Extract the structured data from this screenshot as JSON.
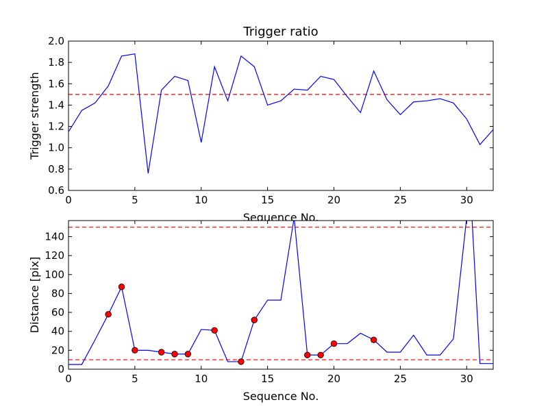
{
  "chart_data": [
    {
      "type": "line",
      "title": "Trigger ratio",
      "xlabel": "Sequence No.",
      "ylabel": "Trigger strength",
      "xlim": [
        0,
        32
      ],
      "ylim": [
        0.6,
        2.0
      ],
      "xticks": [
        0,
        5,
        10,
        15,
        20,
        25,
        30
      ],
      "xtick_labels": [
        "0",
        "5",
        "10",
        "15",
        "20",
        "25",
        "30"
      ],
      "yticks": [
        0.6,
        0.8,
        1.0,
        1.2,
        1.4,
        1.6,
        1.8,
        2.0
      ],
      "ytick_labels": [
        "0.6",
        "0.8",
        "1.0",
        "1.2",
        "1.4",
        "1.6",
        "1.8",
        "2.0"
      ],
      "grid": false,
      "series": [
        {
          "color": "#0000ff",
          "x": [
            0,
            1,
            2,
            3,
            4,
            5,
            6,
            7,
            8,
            9,
            10,
            11,
            12,
            13,
            14,
            15,
            16,
            17,
            18,
            19,
            20,
            21,
            22,
            23,
            24,
            25,
            26,
            27,
            28,
            29,
            30,
            31,
            32
          ],
          "values": [
            1.15,
            1.35,
            1.42,
            1.58,
            1.86,
            1.88,
            0.76,
            1.54,
            1.67,
            1.63,
            1.05,
            1.76,
            1.44,
            1.86,
            1.76,
            1.4,
            1.44,
            1.55,
            1.54,
            1.67,
            1.64,
            1.48,
            1.33,
            1.72,
            1.45,
            1.31,
            1.43,
            1.44,
            1.46,
            1.42,
            1.27,
            1.03,
            1.17
          ]
        }
      ],
      "reference_lines": [
        {
          "y": 1.5,
          "color": "#ff0000",
          "style": "dashed"
        }
      ]
    },
    {
      "type": "line",
      "xlabel": "Sequence No.",
      "ylabel": "Distance [pix]",
      "xlim": [
        0,
        32
      ],
      "ylim": [
        0,
        157
      ],
      "xticks": [
        0,
        5,
        10,
        15,
        20,
        25,
        30
      ],
      "xtick_labels": [
        "0",
        "5",
        "10",
        "15",
        "20",
        "25",
        "30"
      ],
      "yticks": [
        0,
        20,
        40,
        60,
        80,
        100,
        120,
        140
      ],
      "ytick_labels": [
        "0",
        "20",
        "40",
        "60",
        "80",
        "100",
        "120",
        "140"
      ],
      "grid": false,
      "series": [
        {
          "color": "#0000ff",
          "x": [
            0,
            1,
            2,
            3,
            4,
            5,
            6,
            7,
            8,
            9,
            10,
            11,
            12,
            13,
            14,
            15,
            16,
            17,
            18,
            19,
            20,
            21,
            22,
            23,
            24,
            25,
            26,
            27,
            28,
            29,
            30,
            30.4,
            31,
            32
          ],
          "values": [
            5,
            5,
            31,
            58,
            87,
            20,
            20,
            18,
            16,
            16,
            42,
            41,
            8,
            8,
            52,
            73,
            73,
            160,
            15,
            15,
            27,
            27,
            38,
            31,
            18,
            18,
            36,
            15,
            15,
            32,
            160,
            160,
            6,
            6
          ]
        }
      ],
      "markers": {
        "color": "#ff0000",
        "x": [
          3,
          4,
          5,
          7,
          8,
          9,
          11,
          13,
          14,
          18,
          19,
          20,
          23
        ],
        "values": [
          58,
          87,
          20,
          18,
          16,
          16,
          41,
          8,
          52,
          15,
          15,
          27,
          31
        ]
      },
      "reference_lines": [
        {
          "y": 150,
          "color": "#ff0000",
          "style": "dashed"
        },
        {
          "y": 10,
          "color": "#ff0000",
          "style": "dashed"
        }
      ]
    }
  ]
}
